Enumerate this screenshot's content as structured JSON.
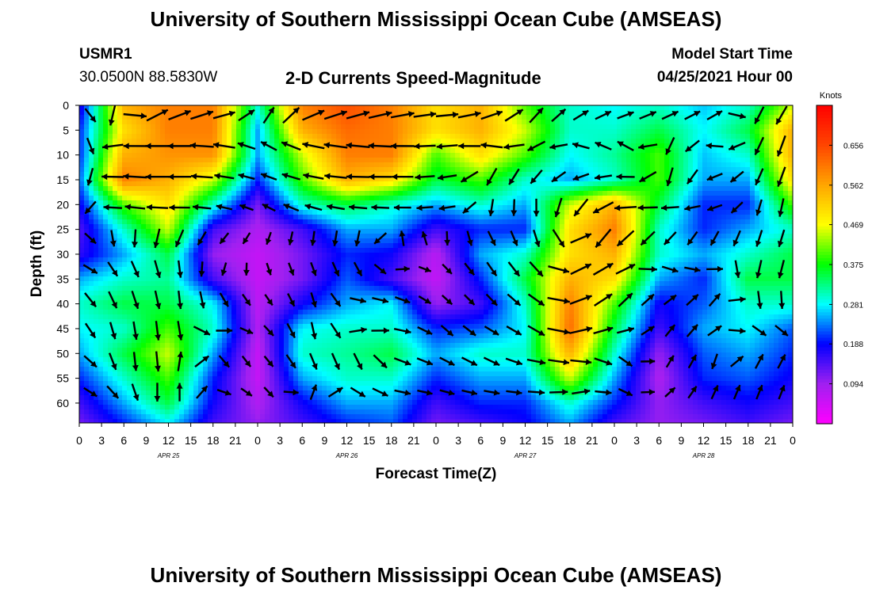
{
  "page": {
    "title": "University of Southern Mississippi Ocean Cube (AMSEAS)",
    "footer_title": "University of Southern Mississippi Ocean Cube (AMSEAS)",
    "station_id": "USMR1",
    "station_coords": "30.0500N  88.5830W",
    "plot_title": "2-D Currents Speed-Magnitude",
    "model_start_label": "Model Start Time",
    "model_start_value": "04/25/2021 Hour 00"
  },
  "colors": {
    "scale": [
      "#ff00ff",
      "#a020f0",
      "#0000ff",
      "#00ffff",
      "#00ff00",
      "#ffff00",
      "#ffa500",
      "#ff4500",
      "#ff0000"
    ],
    "arrow": "#000000"
  },
  "chart_data": {
    "type": "heatmap",
    "title": "2-D Currents Speed-Magnitude",
    "xlabel": "Forecast Time(Z)",
    "ylabel": "Depth (ft)",
    "x_ticks": [
      "0",
      "3",
      "6",
      "9",
      "12",
      "15",
      "18",
      "21",
      "0",
      "3",
      "6",
      "9",
      "12",
      "15",
      "18",
      "21",
      "0",
      "3",
      "6",
      "9",
      "12",
      "15",
      "18",
      "21",
      "0",
      "3",
      "6",
      "9",
      "12",
      "15",
      "18",
      "21",
      "0"
    ],
    "date_labels": [
      {
        "label": "APR 25",
        "hour": 12
      },
      {
        "label": "APR 26",
        "hour": 36
      },
      {
        "label": "APR 27",
        "hour": 60
      },
      {
        "label": "APR 28",
        "hour": 84
      }
    ],
    "xlim": [
      0,
      96
    ],
    "y_ticks": [
      0,
      5,
      10,
      15,
      20,
      25,
      30,
      35,
      40,
      45,
      50,
      55,
      60
    ],
    "ylim": [
      0,
      64
    ],
    "colorbar": {
      "unit": "Knots",
      "ticks": [
        "0.094",
        "0.188",
        "0.281",
        "0.375",
        "0.469",
        "0.562",
        "0.656"
      ],
      "range": [
        0,
        0.75
      ]
    },
    "speed_grid_knots": {
      "times_hr": [
        0,
        6,
        12,
        18,
        24,
        30,
        36,
        42,
        48,
        54,
        60,
        66,
        72,
        78,
        84,
        90,
        96
      ],
      "depths_ft": [
        0,
        5,
        10,
        15,
        20,
        25,
        30,
        35,
        40,
        45,
        50,
        55,
        60,
        64
      ],
      "values": [
        [
          0.16,
          0.55,
          0.6,
          0.6,
          0.3,
          0.6,
          0.65,
          0.6,
          0.5,
          0.55,
          0.4,
          0.3,
          0.28,
          0.3,
          0.26,
          0.3,
          0.45
        ],
        [
          0.2,
          0.5,
          0.6,
          0.6,
          0.25,
          0.55,
          0.62,
          0.6,
          0.5,
          0.55,
          0.45,
          0.3,
          0.3,
          0.35,
          0.28,
          0.35,
          0.55
        ],
        [
          0.2,
          0.55,
          0.58,
          0.58,
          0.25,
          0.45,
          0.6,
          0.6,
          0.4,
          0.5,
          0.4,
          0.28,
          0.32,
          0.4,
          0.26,
          0.3,
          0.55
        ],
        [
          0.22,
          0.6,
          0.55,
          0.45,
          0.2,
          0.4,
          0.55,
          0.5,
          0.35,
          0.4,
          0.3,
          0.25,
          0.3,
          0.4,
          0.25,
          0.25,
          0.5
        ],
        [
          0.18,
          0.4,
          0.5,
          0.3,
          0.12,
          0.3,
          0.35,
          0.3,
          0.25,
          0.3,
          0.25,
          0.45,
          0.55,
          0.35,
          0.2,
          0.2,
          0.4
        ],
        [
          0.14,
          0.3,
          0.45,
          0.15,
          0.08,
          0.15,
          0.25,
          0.25,
          0.15,
          0.2,
          0.2,
          0.5,
          0.6,
          0.3,
          0.2,
          0.25,
          0.3
        ],
        [
          0.16,
          0.25,
          0.35,
          0.1,
          0.06,
          0.12,
          0.2,
          0.18,
          0.07,
          0.25,
          0.3,
          0.5,
          0.55,
          0.3,
          0.25,
          0.3,
          0.35
        ],
        [
          0.25,
          0.3,
          0.32,
          0.15,
          0.06,
          0.12,
          0.22,
          0.15,
          0.06,
          0.2,
          0.35,
          0.55,
          0.5,
          0.25,
          0.2,
          0.35,
          0.35
        ],
        [
          0.3,
          0.35,
          0.35,
          0.28,
          0.07,
          0.18,
          0.25,
          0.28,
          0.1,
          0.15,
          0.3,
          0.6,
          0.4,
          0.18,
          0.22,
          0.3,
          0.3
        ],
        [
          0.28,
          0.3,
          0.4,
          0.3,
          0.08,
          0.28,
          0.3,
          0.3,
          0.2,
          0.22,
          0.28,
          0.62,
          0.35,
          0.15,
          0.25,
          0.28,
          0.22
        ],
        [
          0.25,
          0.35,
          0.45,
          0.25,
          0.06,
          0.3,
          0.32,
          0.35,
          0.25,
          0.3,
          0.3,
          0.55,
          0.3,
          0.1,
          0.22,
          0.25,
          0.2
        ],
        [
          0.2,
          0.3,
          0.4,
          0.2,
          0.06,
          0.25,
          0.3,
          0.3,
          0.2,
          0.25,
          0.25,
          0.45,
          0.25,
          0.08,
          0.2,
          0.22,
          0.18
        ],
        [
          0.15,
          0.25,
          0.35,
          0.18,
          0.08,
          0.18,
          0.25,
          0.25,
          0.15,
          0.2,
          0.2,
          0.3,
          0.2,
          0.1,
          0.15,
          0.18,
          0.15
        ],
        [
          0.12,
          0.2,
          0.28,
          0.15,
          0.1,
          0.15,
          0.2,
          0.22,
          0.12,
          0.15,
          0.18,
          0.25,
          0.15,
          0.1,
          0.12,
          0.15,
          0.12
        ]
      ]
    },
    "vector_grid_direction_deg": {
      "description": "approximate current direction (degrees, 0 = toward top of plot, clockwise) at sample points",
      "times_hr": [
        1,
        5,
        9,
        14,
        20,
        26,
        32,
        38,
        44,
        50,
        56,
        62,
        68,
        74,
        80,
        86,
        92
      ],
      "depths_ft": [
        2,
        8,
        15,
        22,
        29,
        36,
        43,
        50,
        57,
        62
      ],
      "values": [
        [
          135,
          200,
          60,
          70,
          75,
          30,
          70,
          75,
          80,
          85,
          70,
          40,
          60,
          70,
          65,
          60,
          210
        ],
        [
          150,
          270,
          270,
          270,
          280,
          300,
          280,
          275,
          270,
          265,
          280,
          240,
          290,
          300,
          200,
          280,
          200
        ],
        [
          190,
          280,
          270,
          270,
          280,
          290,
          280,
          270,
          270,
          260,
          200,
          220,
          250,
          270,
          190,
          250,
          200
        ],
        [
          220,
          280,
          275,
          270,
          285,
          300,
          285,
          275,
          270,
          260,
          180,
          170,
          215,
          270,
          280,
          250,
          190
        ],
        [
          100,
          150,
          160,
          180,
          195,
          170,
          160,
          165,
          20,
          150,
          140,
          160,
          45,
          210,
          200,
          190,
          200
        ],
        [
          130,
          150,
          160,
          170,
          200,
          150,
          160,
          140,
          120,
          130,
          150,
          120,
          70,
          40,
          60,
          40,
          190
        ],
        [
          150,
          165,
          170,
          180,
          60,
          140,
          170,
          40,
          100,
          140,
          120,
          130,
          60,
          50,
          45,
          40,
          160
        ],
        [
          130,
          170,
          180,
          10,
          150,
          140,
          170,
          160,
          110,
          120,
          120,
          100,
          100,
          130,
          20,
          200,
          30
        ],
        [
          120,
          140,
          180,
          0,
          120,
          140,
          15,
          130,
          100,
          110,
          100,
          100,
          80,
          120,
          45,
          20,
          20
        ],
        [
          120,
          140,
          0,
          0,
          80,
          130,
          20,
          110,
          100,
          80,
          100,
          60,
          80,
          110,
          30,
          40,
          30
        ]
      ]
    }
  }
}
